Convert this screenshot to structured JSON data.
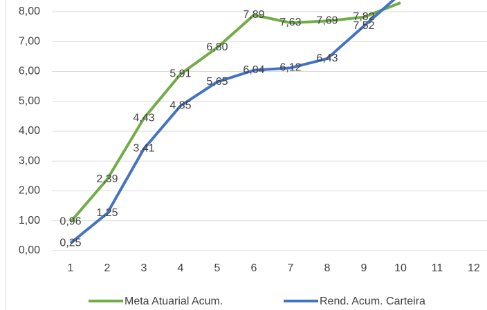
{
  "chart_data": {
    "type": "line",
    "categories": [
      "1",
      "2",
      "3",
      "4",
      "5",
      "6",
      "7",
      "8",
      "9",
      "10",
      "11",
      "12"
    ],
    "series": [
      {
        "name": "Meta Atuarial Acum.",
        "color": "#70ad47",
        "values": [
          0.96,
          2.39,
          4.43,
          5.91,
          6.8,
          7.89,
          7.63,
          7.69,
          7.82,
          8.3,
          null,
          null
        ],
        "value_labels": [
          "0,96",
          "2,39",
          "4,43",
          "5,91",
          "6,80",
          "7,89",
          "7,63",
          "7,69",
          "7,82",
          null,
          null,
          null
        ]
      },
      {
        "name": "Rend. Acum. Carteira",
        "color": "#4472c4",
        "values": [
          0.25,
          1.25,
          3.41,
          4.85,
          5.65,
          6.04,
          6.12,
          6.43,
          7.52,
          8.6,
          null,
          null
        ],
        "value_labels": [
          "0,25",
          "1,25",
          "3,41",
          "4,85",
          "5,65",
          "6,04",
          "6,12",
          "6,43",
          "7,52",
          null,
          null,
          null
        ]
      }
    ],
    "ylim": [
      0,
      8
    ],
    "yticks": [
      {
        "value": 0,
        "label": "0,00"
      },
      {
        "value": 1,
        "label": "1,00"
      },
      {
        "value": 2,
        "label": "2,00"
      },
      {
        "value": 3,
        "label": "3,00"
      },
      {
        "value": 4,
        "label": "4,00"
      },
      {
        "value": 5,
        "label": "5,00"
      },
      {
        "value": 6,
        "label": "6,00"
      },
      {
        "value": 7,
        "label": "7,00"
      },
      {
        "value": 8,
        "label": "8,00"
      }
    ],
    "grid": true,
    "legend": "bottom"
  }
}
